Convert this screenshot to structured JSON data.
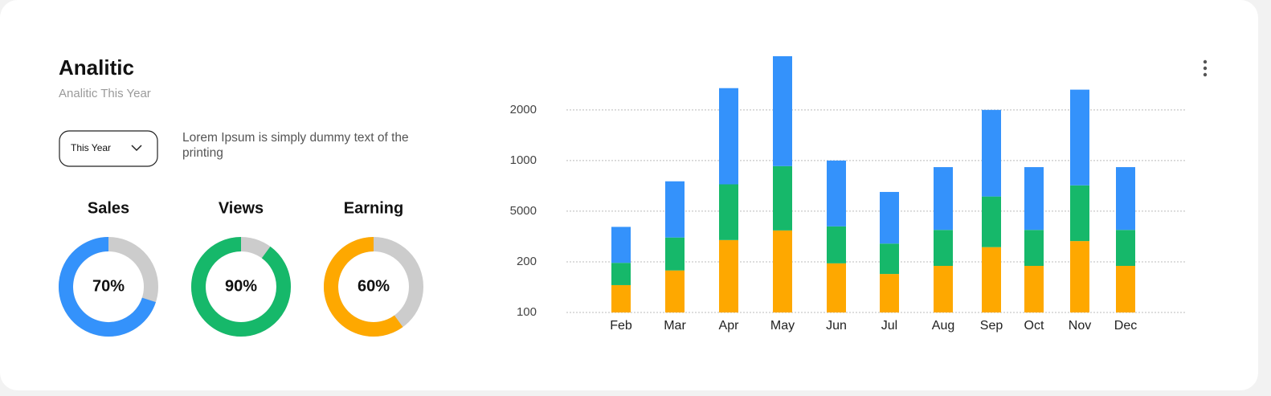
{
  "header": {
    "title": "Analitic",
    "subtitle": "Analitic This Year"
  },
  "filter": {
    "dropdown": "This Year",
    "description": "Lorem Ipsum is simply dummy text of the printing"
  },
  "chart_data": [
    {
      "type": "donut",
      "title": "Sales",
      "values": [
        70
      ],
      "value_labels": [
        "70%"
      ],
      "color": "#3492fb",
      "track_color": "#cccccc"
    },
    {
      "type": "donut",
      "title": "Views",
      "values": [
        90
      ],
      "value_labels": [
        "90%"
      ],
      "color": "#16b86a",
      "track_color": "#cccccc"
    },
    {
      "type": "donut",
      "title": "Earning",
      "values": [
        60
      ],
      "value_labels": [
        "60%"
      ],
      "color": "#fea800",
      "track_color": "#cccccc"
    },
    {
      "type": "stacked-bar",
      "categories": [
        "Feb",
        "Mar",
        "Apr",
        "May",
        "Jun",
        "Jul",
        "Aug",
        "Sep",
        "Oct",
        "Nov",
        "Dec"
      ],
      "series": [
        {
          "color": "#fea800",
          "values": [
            0.54,
            0.83,
            1.43,
            1.62,
            0.97,
            0.76,
            0.92,
            1.29,
            0.92,
            1.41,
            0.92
          ]
        },
        {
          "color": "#16b86a",
          "values": [
            0.44,
            0.65,
            1.1,
            1.27,
            0.73,
            0.6,
            0.71,
            1.0,
            0.71,
            1.1,
            0.71
          ]
        },
        {
          "color": "#3492fb",
          "values": [
            0.71,
            1.11,
            1.9,
            2.17,
            1.3,
            1.02,
            1.24,
            1.71,
            1.24,
            1.89,
            1.24
          ]
        }
      ],
      "ylim": [
        0,
        5.06
      ],
      "yticks": [
        {
          "value": 0,
          "label": "100"
        },
        {
          "value": 1,
          "label": "200"
        },
        {
          "value": 2,
          "label": "5000"
        },
        {
          "value": 3,
          "label": "1000"
        },
        {
          "value": 4,
          "label": "2000"
        }
      ],
      "grid": true
    }
  ]
}
